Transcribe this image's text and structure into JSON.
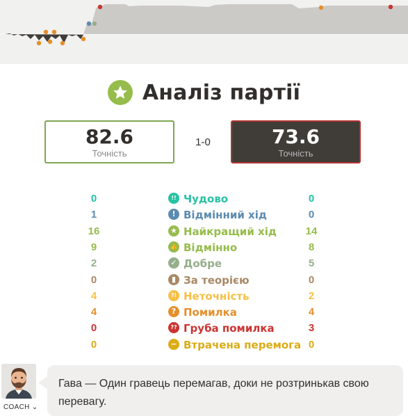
{
  "graph": {
    "colors": {
      "white_area": "#cccac7",
      "black_area": "#403d39",
      "line": "#8b8987"
    }
  },
  "header": {
    "title": "Аналіз партії",
    "icon": "star-icon",
    "icon_color": "#96bc4b"
  },
  "accuracy": {
    "white": {
      "value": "82.6",
      "label": "Точність"
    },
    "black": {
      "value": "73.6",
      "label": "Точність"
    },
    "result": "1-0"
  },
  "stats": [
    {
      "label": "Чудово",
      "white": "0",
      "black": "0",
      "color": "#26c2a3",
      "icon": "brilliant-icon",
      "glyph": "!!"
    },
    {
      "label": "Відмінний хід",
      "white": "1",
      "black": "0",
      "color": "#5c8bb0",
      "icon": "great-move-icon",
      "glyph": "!"
    },
    {
      "label": "Найкращий хід",
      "white": "16",
      "black": "14",
      "color": "#96bc4b",
      "icon": "best-move-icon",
      "glyph": "★"
    },
    {
      "label": "Відмінно",
      "white": "9",
      "black": "8",
      "color": "#96bc4b",
      "icon": "excellent-icon",
      "glyph": "👍"
    },
    {
      "label": "Добре",
      "white": "2",
      "black": "5",
      "color": "#96af8b",
      "icon": "good-icon",
      "glyph": "✓"
    },
    {
      "label": "За теорією",
      "white": "0",
      "black": "0",
      "color": "#a88865",
      "icon": "book-icon",
      "glyph": "▮"
    },
    {
      "label": "Неточність",
      "white": "4",
      "black": "2",
      "color": "#f7c045",
      "icon": "inaccuracy-icon",
      "glyph": "?!"
    },
    {
      "label": "Помилка",
      "white": "4",
      "black": "4",
      "color": "#e58f2a",
      "icon": "mistake-icon",
      "glyph": "?"
    },
    {
      "label": "Груба помилка",
      "white": "0",
      "black": "3",
      "color": "#ca3431",
      "icon": "blunder-icon",
      "glyph": "??"
    },
    {
      "label": "Втрачена перемога",
      "white": "0",
      "black": "0",
      "color": "#dbac16",
      "icon": "missed-win-icon",
      "glyph": "−"
    }
  ],
  "coach": {
    "label": "COACH ⌄",
    "message": "Гава — Один гравець перемагав, доки не розтринькав свою перевагу."
  }
}
